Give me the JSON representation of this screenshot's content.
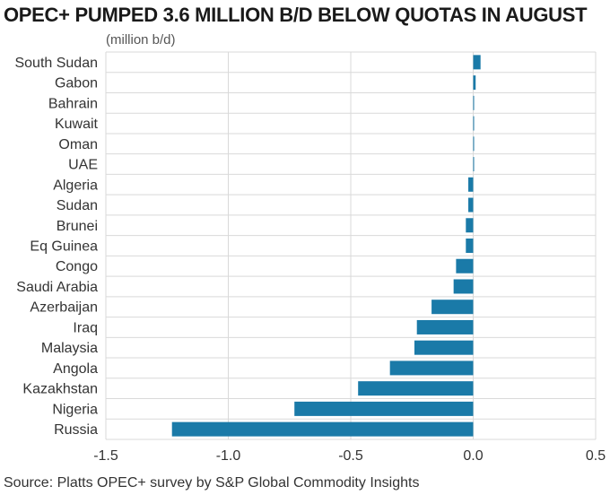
{
  "chart_data": {
    "type": "bar",
    "orientation": "horizontal",
    "title": "OPEC+ PUMPED 3.6 MILLION B/D BELOW QUOTAS IN AUGUST",
    "unit_label": "(million b/d)",
    "source": "Source: Platts OPEC+ survey by S&P Global Commodity Insights",
    "categories": [
      "South Sudan",
      "Gabon",
      "Bahrain",
      "Kuwait",
      "Oman",
      "UAE",
      "Algeria",
      "Sudan",
      "Brunei",
      "Eq Guinea",
      "Congo",
      "Saudi Arabia",
      "Azerbaijan",
      "Iraq",
      "Malaysia",
      "Angola",
      "Kazakhstan",
      "Nigeria",
      "Russia"
    ],
    "values": [
      0.03,
      0.01,
      0.0,
      0.0,
      0.0,
      0.0,
      -0.02,
      -0.02,
      -0.03,
      -0.03,
      -0.07,
      -0.08,
      -0.17,
      -0.23,
      -0.24,
      -0.34,
      -0.47,
      -0.73,
      -1.23
    ],
    "xlim": [
      -1.5,
      0.5
    ],
    "xticks": [
      -1.5,
      -1.0,
      -0.5,
      0.0,
      0.5
    ],
    "xtick_labels": [
      "-1.5",
      "-1.0",
      "-0.5",
      "0.0",
      "0.5"
    ],
    "grid": true,
    "bar_color": "#1a7aa8"
  }
}
